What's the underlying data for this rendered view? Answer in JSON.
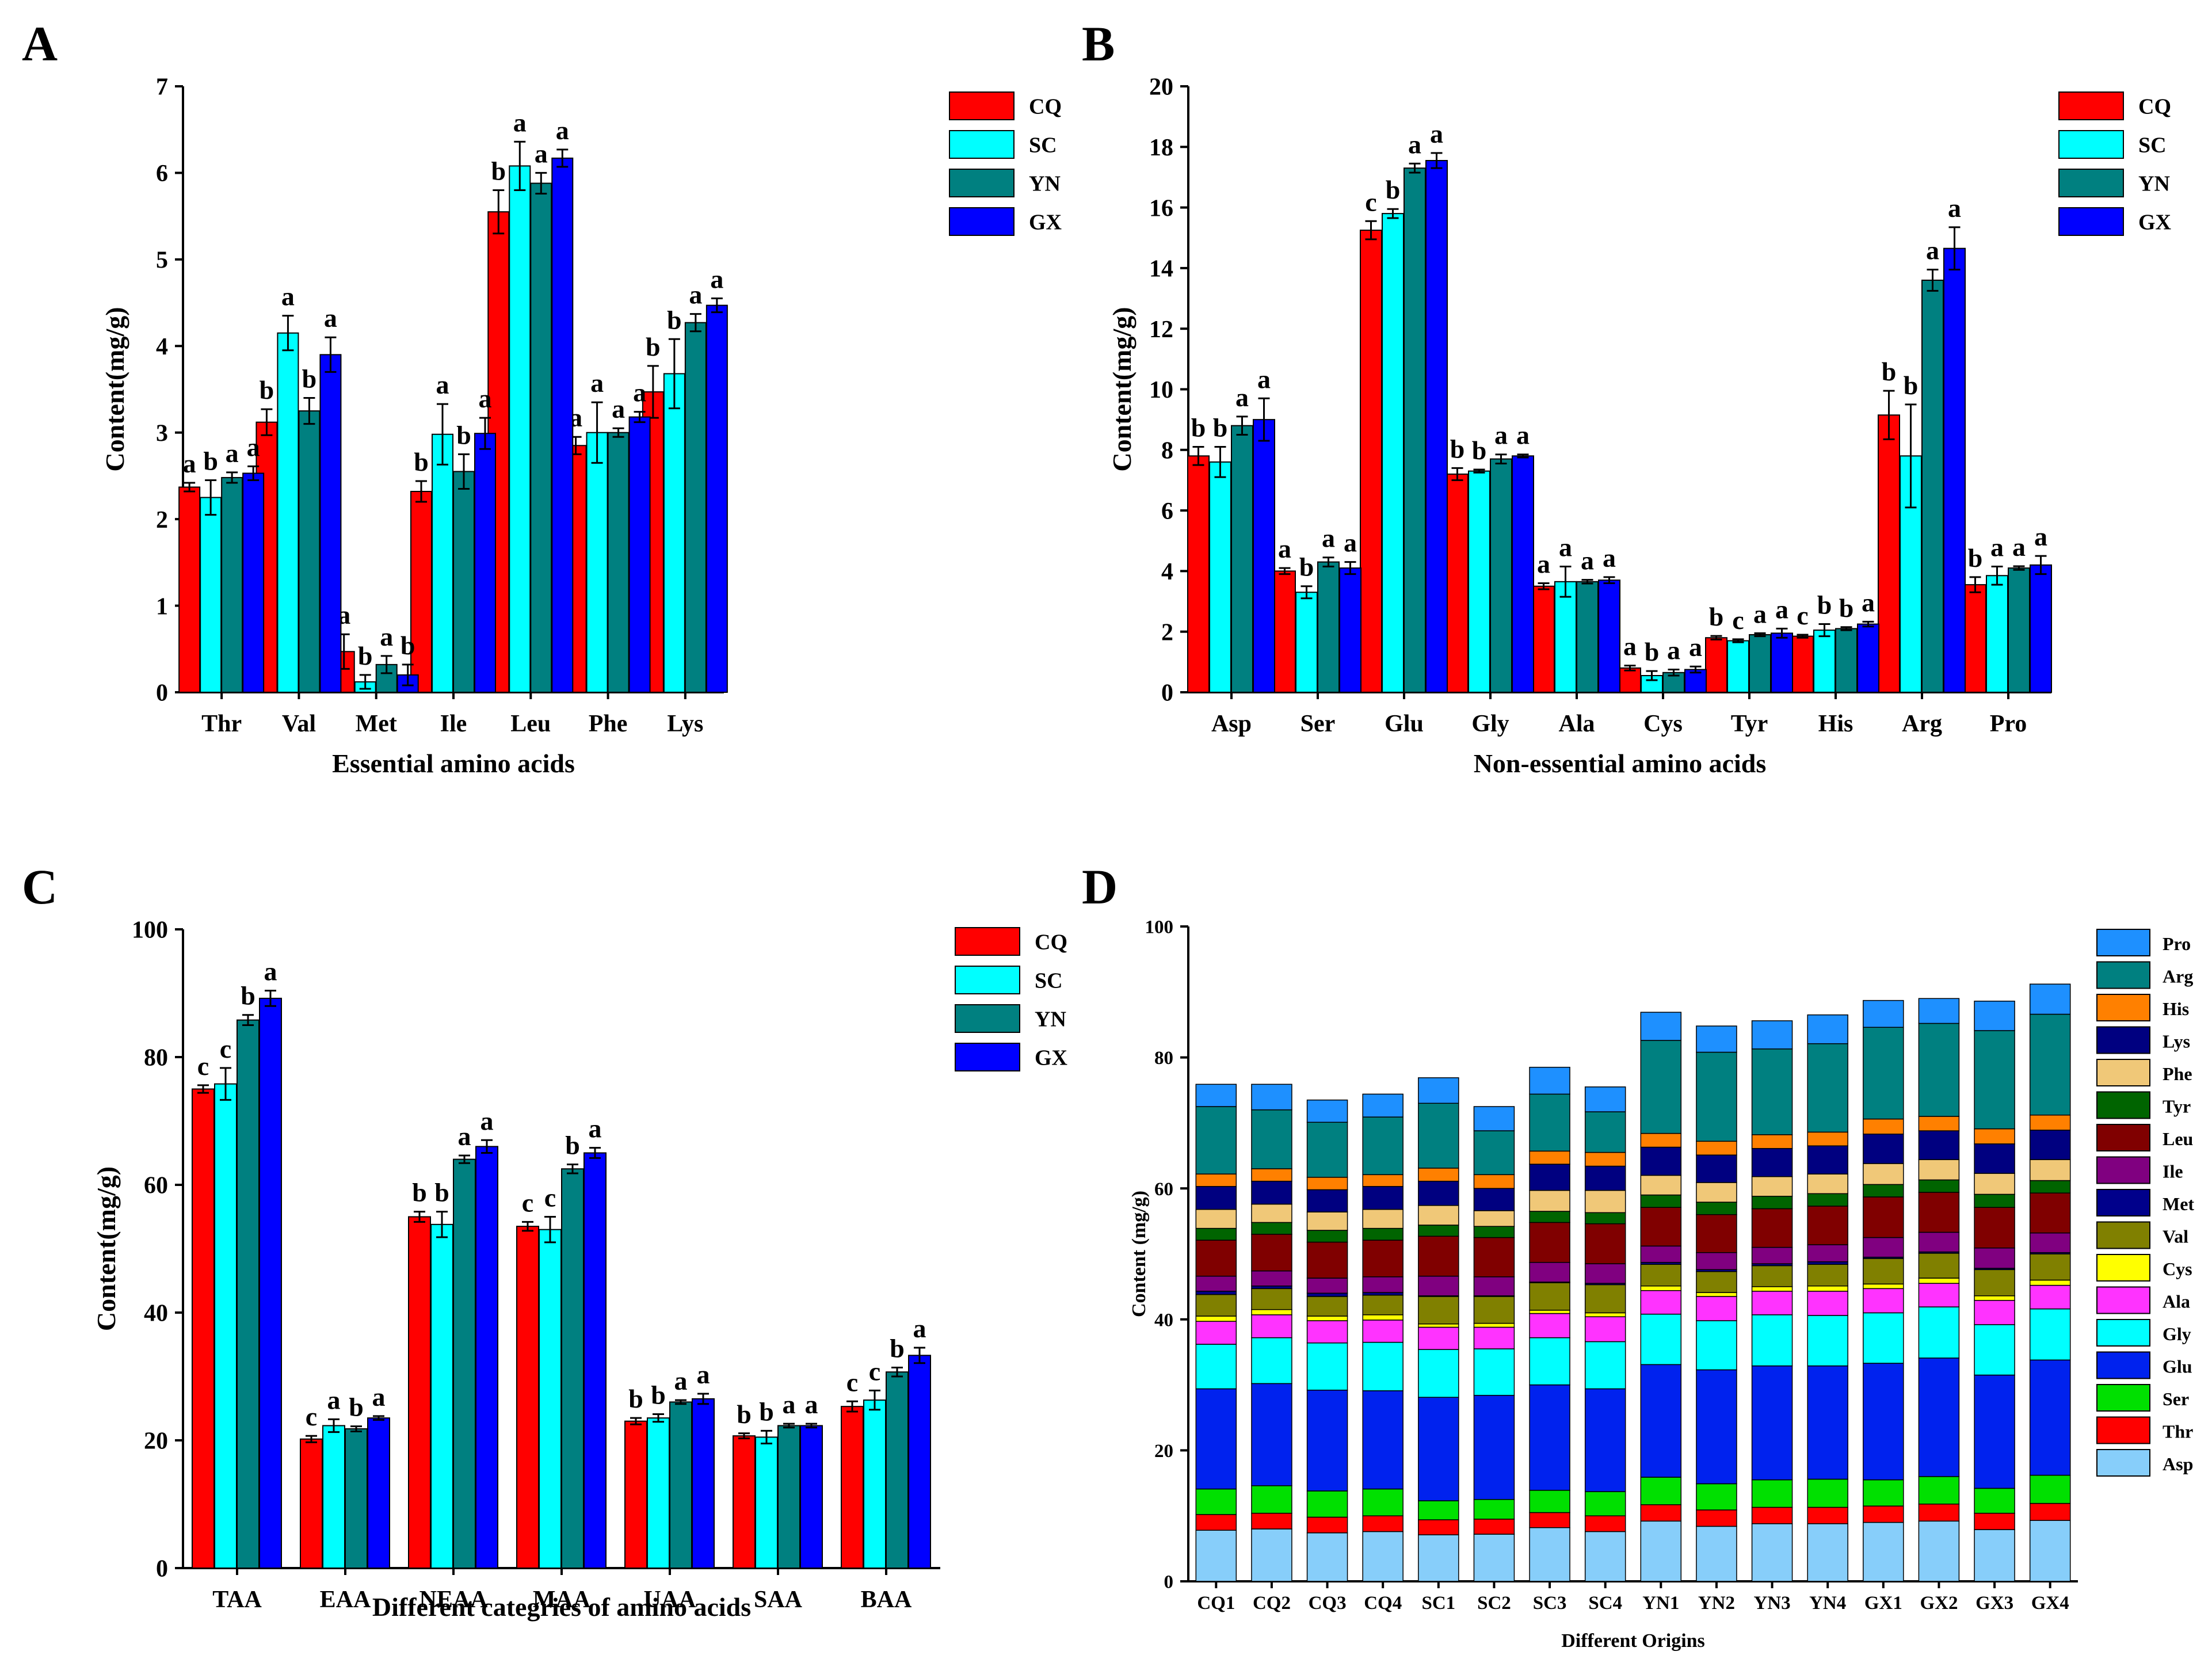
{
  "chart_data": [
    {
      "panel": "A",
      "type": "bar",
      "title": "",
      "xlabel": "Essential amino acids",
      "ylabel": "Content(mg/g)",
      "ylim": [
        0,
        7
      ],
      "yticks": [
        0,
        1,
        2,
        3,
        4,
        5,
        6,
        7
      ],
      "categories": [
        "Thr",
        "Val",
        "Met",
        "Ile",
        "Leu",
        "Phe",
        "Lys"
      ],
      "legend_position": "top-right",
      "series": [
        {
          "name": "CQ",
          "color": "#ff0000",
          "values": [
            2.37,
            3.12,
            0.47,
            2.32,
            5.55,
            2.85,
            3.47
          ],
          "errors": [
            0.05,
            0.15,
            0.2,
            0.12,
            0.25,
            0.1,
            0.3
          ],
          "labels": [
            "a",
            "b",
            "a",
            "b",
            "b",
            "a",
            "b"
          ]
        },
        {
          "name": "SC",
          "color": "#00ffff",
          "values": [
            2.25,
            4.15,
            0.12,
            2.98,
            6.08,
            3.0,
            3.68
          ],
          "errors": [
            0.2,
            0.2,
            0.08,
            0.35,
            0.28,
            0.35,
            0.4
          ],
          "labels": [
            "b",
            "a",
            "b",
            "a",
            "a",
            "a",
            "b"
          ]
        },
        {
          "name": "YN",
          "color": "#008080",
          "values": [
            2.48,
            3.25,
            0.32,
            2.55,
            5.88,
            3.0,
            4.27
          ],
          "errors": [
            0.06,
            0.15,
            0.1,
            0.2,
            0.12,
            0.05,
            0.1
          ],
          "labels": [
            "a",
            "b",
            "a",
            "b",
            "a",
            "a",
            "a"
          ]
        },
        {
          "name": "GX",
          "color": "#0000ff",
          "values": [
            2.53,
            3.9,
            0.2,
            2.99,
            6.17,
            3.18,
            4.47
          ],
          "errors": [
            0.08,
            0.2,
            0.12,
            0.18,
            0.1,
            0.06,
            0.08
          ],
          "labels": [
            "a",
            "a",
            "b",
            "a",
            "a",
            "a",
            "a"
          ]
        }
      ]
    },
    {
      "panel": "B",
      "type": "bar",
      "title": "",
      "xlabel": "Non-essential amino acids",
      "ylabel": "Content(mg/g)",
      "ylim": [
        0,
        20
      ],
      "yticks": [
        0,
        2,
        4,
        6,
        8,
        10,
        12,
        14,
        16,
        18,
        20
      ],
      "categories": [
        "Asp",
        "Ser",
        "Glu",
        "Gly",
        "Ala",
        "Cys",
        "Tyr",
        "His",
        "Arg",
        "Pro"
      ],
      "legend_position": "top-right",
      "series": [
        {
          "name": "CQ",
          "color": "#ff0000",
          "values": [
            7.8,
            4.0,
            15.25,
            7.2,
            3.5,
            0.8,
            1.8,
            1.85,
            9.15,
            3.55
          ],
          "errors": [
            0.3,
            0.1,
            0.3,
            0.2,
            0.1,
            0.08,
            0.06,
            0.05,
            0.8,
            0.25
          ],
          "labels": [
            "b",
            "a",
            "c",
            "b",
            "a",
            "a",
            "b",
            "c",
            "b",
            "b"
          ]
        },
        {
          "name": "SC",
          "color": "#00ffff",
          "values": [
            7.6,
            3.3,
            15.8,
            7.3,
            3.65,
            0.55,
            1.7,
            2.05,
            7.8,
            3.85
          ],
          "errors": [
            0.5,
            0.2,
            0.15,
            0.05,
            0.5,
            0.15,
            0.05,
            0.2,
            1.7,
            0.3
          ],
          "labels": [
            "b",
            "b",
            "b",
            "b",
            "a",
            "b",
            "c",
            "b",
            "b",
            "a"
          ]
        },
        {
          "name": "YN",
          "color": "#008080",
          "values": [
            8.8,
            4.3,
            17.3,
            7.7,
            3.65,
            0.65,
            1.9,
            2.1,
            13.6,
            4.1
          ],
          "errors": [
            0.3,
            0.15,
            0.15,
            0.15,
            0.06,
            0.1,
            0.05,
            0.05,
            0.35,
            0.06
          ],
          "labels": [
            "a",
            "a",
            "a",
            "a",
            "a",
            "a",
            "a",
            "b",
            "a",
            "a"
          ]
        },
        {
          "name": "GX",
          "color": "#0000ff",
          "values": [
            9.0,
            4.1,
            17.55,
            7.8,
            3.7,
            0.75,
            1.95,
            2.25,
            14.65,
            4.2
          ],
          "errors": [
            0.7,
            0.2,
            0.25,
            0.05,
            0.1,
            0.1,
            0.15,
            0.08,
            0.7,
            0.3
          ],
          "labels": [
            "a",
            "a",
            "a",
            "a",
            "a",
            "a",
            "a",
            "a",
            "a",
            "a"
          ]
        }
      ]
    },
    {
      "panel": "C",
      "type": "bar",
      "title": "",
      "xlabel": "Different categries of amino acids",
      "ylabel": "Content(mg/g)",
      "ylim": [
        0,
        100
      ],
      "yticks": [
        0,
        20,
        40,
        60,
        80,
        100
      ],
      "categories": [
        "TAA",
        "EAA",
        "NEAA",
        "MAA",
        "UAA",
        "SAA",
        "BAA"
      ],
      "legend_position": "top-right",
      "series": [
        {
          "name": "CQ",
          "color": "#ff0000",
          "values": [
            75.0,
            20.2,
            55.0,
            53.5,
            23.0,
            20.7,
            25.3
          ],
          "errors": [
            0.6,
            0.5,
            0.8,
            0.7,
            0.5,
            0.4,
            0.8
          ],
          "labels": [
            "c",
            "c",
            "b",
            "c",
            "b",
            "b",
            "c"
          ]
        },
        {
          "name": "SC",
          "color": "#00ffff",
          "values": [
            75.8,
            22.3,
            53.8,
            53.0,
            23.5,
            20.5,
            26.3
          ],
          "errors": [
            2.5,
            1.0,
            2.0,
            2.0,
            0.6,
            1.0,
            1.5
          ],
          "labels": [
            "c",
            "a",
            "b",
            "c",
            "b",
            "b",
            "c"
          ]
        },
        {
          "name": "YN",
          "color": "#008080",
          "values": [
            85.8,
            21.8,
            64.0,
            62.5,
            26.0,
            22.3,
            30.7
          ],
          "errors": [
            0.8,
            0.4,
            0.6,
            0.7,
            0.3,
            0.3,
            0.7
          ],
          "labels": [
            "b",
            "b",
            "a",
            "b",
            "a",
            "a",
            "b"
          ]
        },
        {
          "name": "GX",
          "color": "#0000ff",
          "values": [
            89.2,
            23.5,
            66.0,
            65.0,
            26.5,
            22.3,
            33.3
          ],
          "errors": [
            1.2,
            0.3,
            1.0,
            0.8,
            0.8,
            0.3,
            1.2
          ],
          "labels": [
            "a",
            "a",
            "a",
            "a",
            "a",
            "a",
            "a"
          ]
        }
      ]
    },
    {
      "panel": "D",
      "type": "bar",
      "stacked": true,
      "title": "",
      "xlabel": "Different Origins",
      "ylabel": "Content (mg/g)",
      "ylim": [
        0,
        100
      ],
      "yticks": [
        0,
        20,
        40,
        60,
        80,
        100
      ],
      "categories": [
        "CQ1",
        "CQ2",
        "CQ3",
        "CQ4",
        "SC1",
        "SC2",
        "SC3",
        "SC4",
        "YN1",
        "YN2",
        "YN3",
        "YN4",
        "GX1",
        "GX2",
        "GX3",
        "GX4"
      ],
      "legend_position": "right",
      "legend_order": [
        "Pro",
        "Arg",
        "His",
        "Lys",
        "Phe",
        "Tyr",
        "Leu",
        "Ile",
        "Met",
        "Val",
        "Cys",
        "Ala",
        "Gly",
        "Glu",
        "Ser",
        "Thr",
        "Asp"
      ],
      "series": [
        {
          "name": "Asp",
          "color": "#87cefa",
          "values": [
            7.8,
            8.0,
            7.4,
            7.6,
            7.1,
            7.2,
            8.2,
            7.6,
            9.2,
            8.4,
            8.8,
            8.8,
            9.0,
            9.2,
            7.9,
            9.3
          ]
        },
        {
          "name": "Thr",
          "color": "#ff0000",
          "values": [
            2.4,
            2.4,
            2.4,
            2.4,
            2.3,
            2.3,
            2.3,
            2.4,
            2.5,
            2.5,
            2.5,
            2.5,
            2.5,
            2.6,
            2.5,
            2.6
          ]
        },
        {
          "name": "Ser",
          "color": "#00e000",
          "values": [
            3.9,
            4.2,
            4.0,
            4.1,
            2.9,
            3.0,
            3.4,
            3.7,
            4.2,
            4.0,
            4.2,
            4.3,
            4.0,
            4.2,
            3.8,
            4.3
          ]
        },
        {
          "name": "Glu",
          "color": "#0022ee",
          "values": [
            15.3,
            15.6,
            15.4,
            15.0,
            15.8,
            15.9,
            16.1,
            15.7,
            17.2,
            17.4,
            17.4,
            17.3,
            17.8,
            18.1,
            17.3,
            17.6
          ]
        },
        {
          "name": "Gly",
          "color": "#00ffff",
          "values": [
            6.8,
            7.0,
            7.2,
            7.4,
            7.3,
            7.1,
            7.2,
            7.2,
            7.7,
            7.5,
            7.8,
            7.7,
            7.7,
            7.8,
            7.7,
            7.8
          ]
        },
        {
          "name": "Ala",
          "color": "#ff33ff",
          "values": [
            3.5,
            3.5,
            3.4,
            3.4,
            3.4,
            3.3,
            3.7,
            3.8,
            3.6,
            3.7,
            3.6,
            3.7,
            3.7,
            3.6,
            3.7,
            3.6
          ]
        },
        {
          "name": "Cys",
          "color": "#ffff00",
          "values": [
            0.8,
            0.8,
            0.7,
            0.8,
            0.5,
            0.6,
            0.5,
            0.6,
            0.7,
            0.6,
            0.7,
            0.8,
            0.7,
            0.8,
            0.7,
            0.8
          ]
        },
        {
          "name": "Val",
          "color": "#808000",
          "values": [
            3.3,
            3.2,
            3.0,
            3.0,
            4.2,
            4.1,
            4.2,
            4.3,
            3.3,
            3.2,
            3.2,
            3.3,
            3.9,
            3.8,
            4.0,
            4.0
          ]
        },
        {
          "name": "Met",
          "color": "#00008b",
          "values": [
            0.5,
            0.4,
            0.5,
            0.4,
            0.1,
            0.1,
            0.1,
            0.2,
            0.3,
            0.3,
            0.3,
            0.4,
            0.2,
            0.2,
            0.2,
            0.2
          ]
        },
        {
          "name": "Ile",
          "color": "#800080",
          "values": [
            2.3,
            2.3,
            2.3,
            2.4,
            3.0,
            2.9,
            3.0,
            3.0,
            2.5,
            2.6,
            2.5,
            2.6,
            3.0,
            3.0,
            3.1,
            3.0
          ]
        },
        {
          "name": "Leu",
          "color": "#800000",
          "values": [
            5.5,
            5.6,
            5.5,
            5.6,
            6.1,
            6.0,
            6.1,
            6.1,
            5.9,
            5.8,
            5.9,
            5.9,
            6.2,
            6.1,
            6.2,
            6.1
          ]
        },
        {
          "name": "Tyr",
          "color": "#006400",
          "values": [
            1.8,
            1.8,
            1.8,
            1.8,
            1.7,
            1.7,
            1.7,
            1.7,
            1.9,
            1.9,
            1.9,
            1.9,
            1.9,
            1.9,
            2.0,
            1.9
          ]
        },
        {
          "name": "Phe",
          "color": "#f0c878",
          "values": [
            2.9,
            2.8,
            2.8,
            2.9,
            3.0,
            2.4,
            3.2,
            3.4,
            3.0,
            3.0,
            3.0,
            3.0,
            3.2,
            3.1,
            3.2,
            3.2
          ]
        },
        {
          "name": "Lys",
          "color": "#000080",
          "values": [
            3.5,
            3.5,
            3.4,
            3.5,
            3.7,
            3.4,
            4.0,
            3.7,
            4.3,
            4.2,
            4.3,
            4.3,
            4.5,
            4.4,
            4.5,
            4.5
          ]
        },
        {
          "name": "His",
          "color": "#ff8000",
          "values": [
            1.9,
            1.9,
            1.9,
            1.8,
            2.0,
            2.1,
            2.0,
            2.1,
            2.1,
            2.1,
            2.1,
            2.1,
            2.3,
            2.2,
            2.3,
            2.3
          ]
        },
        {
          "name": "Arg",
          "color": "#008080",
          "values": [
            10.3,
            9.0,
            8.4,
            8.8,
            9.9,
            6.7,
            8.7,
            6.2,
            14.2,
            13.6,
            13.1,
            13.5,
            14.0,
            14.2,
            15.0,
            15.4
          ]
        },
        {
          "name": "Pro",
          "color": "#1e90ff",
          "values": [
            3.4,
            3.9,
            3.4,
            3.5,
            3.9,
            3.7,
            4.1,
            3.8,
            4.3,
            4.0,
            4.3,
            4.4,
            4.1,
            3.8,
            4.5,
            4.6
          ]
        }
      ]
    }
  ],
  "panel_labels": [
    "A",
    "B",
    "C",
    "D"
  ]
}
